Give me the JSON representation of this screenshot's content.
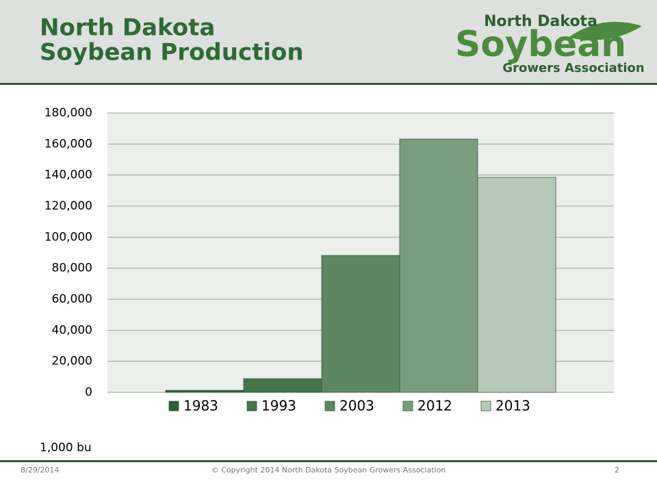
{
  "header": {
    "title": [
      "North Dakota",
      "Soybean Production"
    ]
  },
  "logo": {
    "top": "North Dakota",
    "main": "Soybean",
    "bottom": "Growers Association"
  },
  "chart_data": {
    "type": "bar",
    "categories": [
      null
    ],
    "series": [
      {
        "name": "1983",
        "color": "#2f5f33",
        "values": [
          1300
        ]
      },
      {
        "name": "1993",
        "color": "#46754b",
        "values": [
          8800
        ]
      },
      {
        "name": "2003",
        "color": "#5d8761",
        "values": [
          88200
        ]
      },
      {
        "name": "2012",
        "color": "#7c9c7e",
        "values": [
          163200
        ]
      },
      {
        "name": "2013",
        "color": "#b8c8b8",
        "values": [
          138500
        ]
      }
    ],
    "ylim": [
      0,
      180000
    ],
    "yticks": [
      0,
      {
        "value": 20000,
        "label": "20,000"
      },
      {
        "value": 40000,
        "label": "40,000"
      },
      {
        "value": 60000,
        "label": "60,000"
      },
      {
        "value": 80000,
        "label": "80,000"
      },
      {
        "value": 100000,
        "label": "100,000"
      },
      {
        "value": 120000,
        "label": "120,000"
      },
      {
        "value": 140000,
        "label": "140,000"
      },
      {
        "value": 160000,
        "label": "160,000"
      },
      {
        "value": 180000,
        "label": "180,000"
      }
    ],
    "grid": true,
    "legend": "bottom",
    "unit_label": "1,000 bu"
  },
  "footer": {
    "date": "8/29/2014",
    "copyright": "© Copyright 2014 North Dakota Soybean Growers Association",
    "page": "2"
  }
}
